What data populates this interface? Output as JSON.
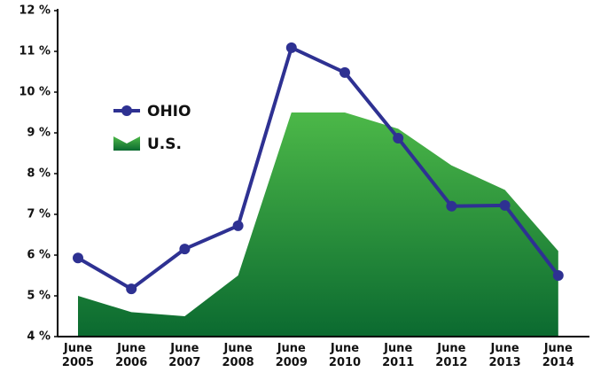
{
  "chart_data": {
    "type": "line",
    "categories": [
      "June 2005",
      "June 2006",
      "June 2007",
      "June 2008",
      "June 2009",
      "June 2010",
      "June 2011",
      "June 2012",
      "June 2013",
      "June 2014"
    ],
    "series": [
      {
        "name": "OHIO",
        "type": "line",
        "color": "#2e3192",
        "values": [
          5.93,
          5.17,
          6.15,
          6.72,
          11.09,
          10.48,
          8.87,
          7.2,
          7.22,
          5.5
        ]
      },
      {
        "name": "U.S.",
        "type": "area",
        "color": "#3aa845",
        "values": [
          5.0,
          4.6,
          4.5,
          5.5,
          9.5,
          9.5,
          9.1,
          8.2,
          7.6,
          6.1
        ]
      }
    ],
    "ylim": [
      4,
      12
    ],
    "yticks": [
      {
        "value": 4,
        "label": "4 %"
      },
      {
        "value": 5,
        "label": "5 %"
      },
      {
        "value": 6,
        "label": "6 %"
      },
      {
        "value": 7,
        "label": "7 %"
      },
      {
        "value": 8,
        "label": "8 %"
      },
      {
        "value": 9,
        "label": "9 %"
      },
      {
        "value": 10,
        "label": "10 %"
      },
      {
        "value": 11,
        "label": "11 %"
      },
      {
        "value": 12,
        "label": "12 %"
      }
    ]
  }
}
